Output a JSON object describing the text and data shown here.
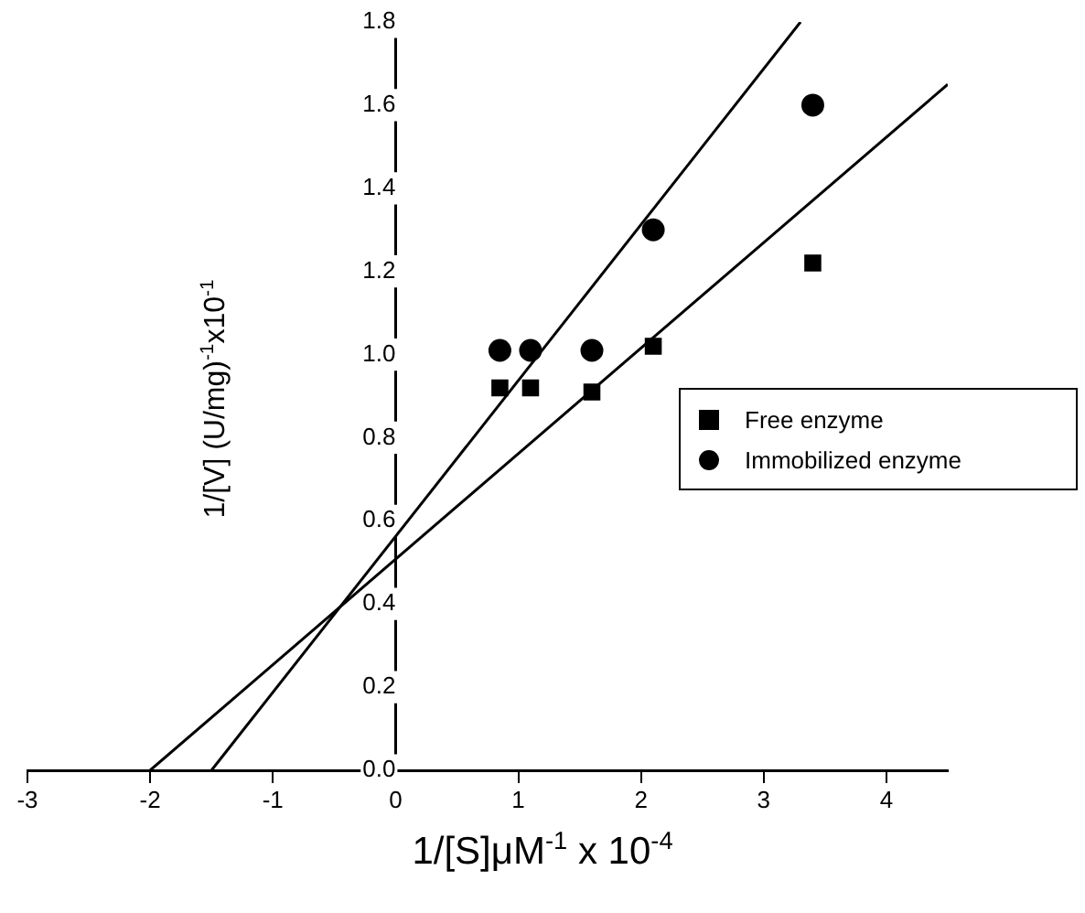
{
  "chart_data": {
    "type": "scatter",
    "xlabel": "1/[S]μM$^{-1}$ x 10$^{-4}$",
    "ylabel": "1/[V] (U/mg)$^{-1}$x10$^{-1}$",
    "xlim": [
      -3,
      4.5
    ],
    "xticks": [
      -3,
      -2,
      -1,
      0,
      1,
      2,
      3,
      4
    ],
    "ylim": [
      0,
      1.8
    ],
    "yticks": [
      {
        "value": 0,
        "label": "0.0"
      },
      {
        "value": 0.2,
        "label": "0.2"
      },
      {
        "value": 0.4,
        "label": "0.4"
      },
      {
        "value": 0.6,
        "label": "0.6"
      },
      {
        "value": 0.8,
        "label": "0.8"
      },
      {
        "value": 1,
        "label": "1.0"
      },
      {
        "value": 1.2,
        "label": "1.2"
      },
      {
        "value": 1.4,
        "label": "1.4"
      },
      {
        "value": 1.6,
        "label": "1.6"
      },
      {
        "value": 1.8,
        "label": "1.8"
      }
    ],
    "grid": false,
    "legend": "right",
    "series": [
      {
        "name": "Free enzyme",
        "type": "scatter",
        "marker": "square",
        "color": "#000000",
        "x": [
          0.85,
          1.1,
          1.6,
          2.1,
          3.4
        ],
        "values": [
          0.92,
          0.92,
          0.91,
          1.02,
          1.22
        ]
      },
      {
        "name": "Immobilized enzyme",
        "type": "scatter",
        "marker": "circle",
        "color": "#000000",
        "x": [
          0.85,
          1.1,
          1.6,
          2.1,
          3.4
        ],
        "values": [
          1.01,
          1.01,
          1.01,
          1.3,
          1.6
        ]
      },
      {
        "type": "line",
        "marker": "none",
        "color": "#000000",
        "x": [
          -2,
          4.5
        ],
        "values": [
          0,
          1.65
        ]
      },
      {
        "type": "line",
        "marker": "none",
        "color": "#000000",
        "x": [
          -1.5,
          3.3
        ],
        "values": [
          0,
          1.8
        ]
      }
    ]
  }
}
